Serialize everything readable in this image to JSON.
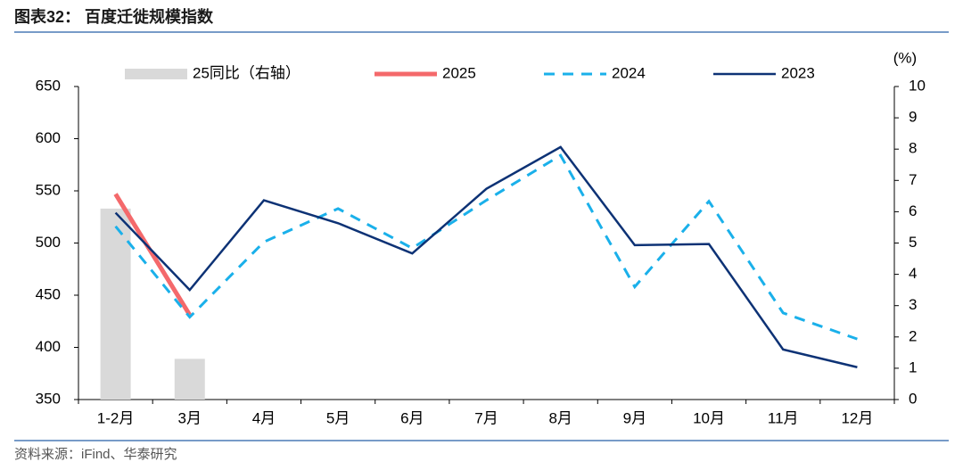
{
  "chart_data": {
    "type": "line",
    "title": "图表32： 百度迁徙规模指数",
    "source": "资料来源：iFind、华泰研究",
    "y2_label": "(%)",
    "categories": [
      "1-2月",
      "3月",
      "4月",
      "5月",
      "6月",
      "7月",
      "8月",
      "9月",
      "10月",
      "11月",
      "12月"
    ],
    "series": [
      {
        "name": "25同比（右轴）",
        "type": "bar",
        "axis": "y2",
        "color": "#d9d9d9",
        "values": [
          6.1,
          1.3,
          null,
          null,
          null,
          null,
          null,
          null,
          null,
          null,
          null
        ]
      },
      {
        "name": "2025",
        "type": "line",
        "color": "#f4696b",
        "dash": false,
        "width": 5,
        "values": [
          547,
          431,
          null,
          null,
          null,
          null,
          null,
          null,
          null,
          null,
          null
        ]
      },
      {
        "name": "2024",
        "type": "line",
        "color": "#1ab0ea",
        "dash": true,
        "width": 3,
        "values": [
          516,
          429,
          501,
          533,
          495,
          541,
          584,
          458,
          540,
          433,
          408
        ]
      },
      {
        "name": "2023",
        "type": "line",
        "color": "#0d3275",
        "dash": false,
        "width": 2.5,
        "values": [
          529,
          455,
          541,
          519,
          490,
          552,
          592,
          498,
          499,
          398,
          381
        ]
      }
    ],
    "ylim": [
      350,
      650
    ],
    "yticks": [
      350,
      400,
      450,
      500,
      550,
      600,
      650
    ],
    "y2lim": [
      0,
      10
    ],
    "y2ticks": [
      0,
      1,
      2,
      3,
      4,
      5,
      6,
      7,
      8,
      9,
      10
    ]
  }
}
